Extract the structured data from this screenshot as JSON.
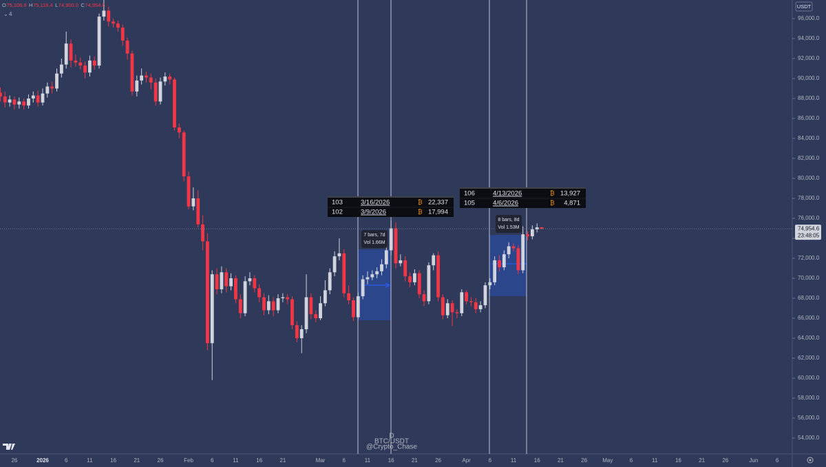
{
  "chart_data": {
    "type": "candlestick",
    "categories": [
      null,
      null,
      null,
      "26",
      null,
      null,
      null,
      null,
      null,
      "2026",
      null,
      null,
      null,
      null,
      "6",
      null,
      null,
      null,
      null,
      "11",
      null,
      null,
      null,
      null,
      "16",
      null,
      null,
      null,
      null,
      "21",
      null,
      null,
      null,
      null,
      "26",
      null,
      null,
      null,
      null,
      null,
      "Feb",
      null,
      null,
      null,
      null,
      "6",
      null,
      null,
      null,
      null,
      "11",
      null,
      null,
      null,
      null,
      "16",
      null,
      null,
      null,
      null,
      "21",
      null,
      null,
      null,
      null,
      null,
      null,
      null,
      "Mar",
      null,
      null,
      null,
      null,
      "6",
      null,
      null,
      null,
      null,
      "11",
      null,
      null,
      null,
      null,
      "16",
      null,
      null,
      null,
      null,
      "21",
      null,
      null,
      null,
      null,
      "26",
      null,
      null,
      null,
      null,
      null,
      "Apr",
      null,
      null,
      null,
      null,
      "6",
      null,
      null,
      null,
      null,
      "11",
      null,
      null,
      null,
      null,
      "16",
      null,
      null,
      null,
      null,
      "21",
      null,
      null,
      null,
      null,
      "26",
      null,
      null,
      null,
      null,
      "May",
      null,
      null,
      null,
      null,
      "6",
      null,
      null,
      null,
      null,
      "11",
      null,
      null,
      null,
      null,
      "16",
      null,
      null,
      null,
      null,
      "21",
      null,
      null,
      null,
      null,
      "26",
      null,
      null,
      null,
      null,
      null,
      "Jun",
      null,
      null,
      null,
      null,
      "6",
      null,
      null,
      null
    ],
    "open": [
      88600,
      88200,
      87600,
      87900,
      87400,
      87700,
      87300,
      88000,
      88300,
      87600,
      88500,
      89200,
      89000,
      90500,
      91400,
      93500,
      91800,
      91600,
      91300,
      90600,
      91800,
      91300,
      96200,
      96800,
      95700,
      95500,
      95100,
      93800,
      92500,
      88700,
      89800,
      90300,
      90100,
      89600,
      87700,
      89700,
      90200,
      89900,
      85100,
      84600,
      80200,
      77200,
      78000,
      75400,
      73700,
      63500,
      70400,
      68900,
      70600,
      69200,
      70000,
      67900,
      66500,
      69700,
      70000,
      69000,
      68100,
      66800,
      67700,
      66800,
      68000,
      68100,
      67900,
      65300,
      64000,
      64900,
      68100,
      66400,
      66000,
      67500,
      68800,
      70600,
      72200,
      72500,
      68500,
      67800,
      66100,
      68200,
      69900,
      70100,
      70400,
      70700,
      71400,
      72800,
      75000,
      71500,
      71800,
      70200,
      69600,
      70500,
      68400,
      67700,
      71300,
      72300,
      68100,
      66300,
      67500,
      66600,
      66500,
      68600,
      67700,
      67600,
      66900,
      67300,
      69300,
      69600,
      71800,
      71100,
      72400,
      73200,
      73000,
      70800,
      74400,
      74200,
      74900,
      75106.8,
      null,
      null,
      null,
      null,
      null,
      null,
      null,
      null,
      null,
      null,
      null,
      null,
      null,
      null,
      null,
      null,
      null,
      null,
      null,
      null,
      null,
      null,
      null,
      null,
      null,
      null,
      null,
      null,
      null,
      null,
      null,
      null,
      null,
      null,
      null,
      null,
      null,
      null,
      null,
      null,
      null,
      null,
      null,
      null,
      null,
      null,
      null,
      null,
      null,
      null,
      null,
      null,
      null
    ],
    "high": [
      89100,
      88700,
      88300,
      88200,
      88100,
      88000,
      88400,
      88700,
      88800,
      89000,
      89600,
      89700,
      91000,
      92000,
      94700,
      93900,
      92400,
      92100,
      91700,
      92300,
      92200,
      96500,
      97900,
      97200,
      96000,
      95800,
      95400,
      94100,
      92800,
      90300,
      91000,
      90700,
      90500,
      90000,
      90100,
      90600,
      90500,
      90100,
      85500,
      84800,
      80700,
      79100,
      78800,
      76300,
      74500,
      70800,
      71000,
      71200,
      71000,
      70500,
      70300,
      68400,
      70200,
      70600,
      70300,
      69400,
      68500,
      68300,
      68100,
      68400,
      68500,
      68400,
      68200,
      65700,
      65300,
      70400,
      68500,
      66800,
      68200,
      69800,
      71000,
      72700,
      74000,
      72900,
      69300,
      68100,
      68600,
      70300,
      70700,
      70800,
      71100,
      71900,
      73200,
      75800,
      75600,
      72400,
      72200,
      70600,
      70900,
      70800,
      68800,
      71600,
      72500,
      72700,
      68400,
      67900,
      67800,
      66900,
      68900,
      68800,
      68100,
      68000,
      67700,
      69600,
      70000,
      72200,
      72300,
      72800,
      73600,
      73500,
      73300,
      75200,
      74700,
      75300,
      75500,
      75118.4,
      null,
      null,
      null,
      null,
      null,
      null,
      null,
      null,
      null,
      null,
      null,
      null,
      null,
      null,
      null,
      null,
      null,
      null,
      null,
      null,
      null,
      null,
      null,
      null,
      null,
      null,
      null,
      null,
      null,
      null,
      null,
      null,
      null,
      null,
      null,
      null,
      null,
      null,
      null,
      null,
      null,
      null,
      null,
      null,
      null,
      null,
      null,
      null,
      null,
      null,
      null,
      null,
      null
    ],
    "low": [
      87700,
      87100,
      87200,
      86900,
      87000,
      86900,
      87000,
      87600,
      87200,
      87300,
      88100,
      88500,
      88700,
      90100,
      91000,
      91100,
      91200,
      90900,
      90000,
      90200,
      90900,
      91000,
      95800,
      95200,
      95100,
      94700,
      93300,
      91900,
      88300,
      88200,
      89400,
      89600,
      88900,
      87300,
      87400,
      89300,
      89400,
      84800,
      84000,
      79700,
      76900,
      76800,
      75100,
      72800,
      62800,
      59800,
      68400,
      68500,
      68600,
      68800,
      67500,
      66000,
      66200,
      69300,
      68600,
      67600,
      66300,
      66400,
      66200,
      66500,
      67600,
      67400,
      64900,
      63600,
      62500,
      64500,
      65900,
      65600,
      65800,
      67200,
      68400,
      70200,
      71800,
      68100,
      67400,
      65700,
      65900,
      67900,
      69400,
      69800,
      70000,
      70300,
      71000,
      72300,
      71000,
      71200,
      69700,
      69100,
      69300,
      68000,
      67200,
      67400,
      70800,
      67700,
      65900,
      66000,
      65200,
      66000,
      66200,
      67400,
      67200,
      66500,
      66600,
      67000,
      68900,
      69300,
      70700,
      70800,
      72000,
      72700,
      70400,
      70500,
      73800,
      73900,
      74600,
      74900,
      null,
      null,
      null,
      null,
      null,
      null,
      null,
      null,
      null,
      null,
      null,
      null,
      null,
      null,
      null,
      null,
      null,
      null,
      null,
      null,
      null,
      null,
      null,
      null,
      null,
      null,
      null,
      null,
      null,
      null,
      null,
      null,
      null,
      null,
      null,
      null,
      null,
      null,
      null,
      null,
      null,
      null,
      null,
      null,
      null,
      null,
      null,
      null,
      null,
      null,
      null,
      null,
      null
    ],
    "close": [
      88200,
      87600,
      87900,
      87400,
      87700,
      87300,
      88000,
      88300,
      87600,
      88500,
      89200,
      89000,
      90500,
      91400,
      93500,
      91800,
      91600,
      91300,
      90600,
      91800,
      91300,
      96200,
      96800,
      95700,
      95500,
      95100,
      93800,
      92500,
      88700,
      89800,
      90300,
      90100,
      89600,
      87700,
      89700,
      90200,
      89900,
      85100,
      84600,
      80200,
      77200,
      78000,
      75400,
      73700,
      63500,
      70400,
      68900,
      70600,
      69200,
      70000,
      67900,
      66500,
      69700,
      70000,
      69000,
      68100,
      66800,
      67700,
      66800,
      68000,
      68100,
      67900,
      65300,
      64000,
      64900,
      68100,
      66400,
      66000,
      67500,
      68800,
      70600,
      72200,
      72500,
      68500,
      67800,
      66100,
      68200,
      69900,
      70100,
      70400,
      70700,
      71400,
      72800,
      75000,
      71500,
      71800,
      70200,
      69600,
      70500,
      68400,
      67700,
      71300,
      72300,
      68100,
      66300,
      67500,
      66600,
      66500,
      68600,
      67700,
      67600,
      66900,
      67300,
      69300,
      69600,
      71800,
      71100,
      72400,
      73200,
      73000,
      70800,
      74400,
      74200,
      74900,
      75100,
      74954.6,
      null,
      null,
      null,
      null,
      null,
      null,
      null,
      null,
      null,
      null,
      null,
      null,
      null,
      null,
      null,
      null,
      null,
      null,
      null,
      null,
      null,
      null,
      null,
      null,
      null,
      null,
      null,
      null,
      null,
      null,
      null,
      null,
      null,
      null,
      null,
      null,
      null,
      null,
      null,
      null,
      null,
      null,
      null,
      null,
      null,
      null,
      null,
      null,
      null,
      null,
      null,
      null,
      null
    ],
    "colors": {
      "up": "#d1d4dc",
      "down": "#f23645"
    },
    "ylim": [
      52483,
      97862
    ],
    "yticks": [
      {
        "value": 54000,
        "label": "54,000.0"
      },
      {
        "value": 56000,
        "label": "56,000.0"
      },
      {
        "value": 58000,
        "label": "58,000.0"
      },
      {
        "value": 60000,
        "label": "60,000.0"
      },
      {
        "value": 62000,
        "label": "62,000.0"
      },
      {
        "value": 64000,
        "label": "64,000.0"
      },
      {
        "value": 66000,
        "label": "66,000.0"
      },
      {
        "value": 68000,
        "label": "68,000.0"
      },
      {
        "value": 70000,
        "label": "70,000.0"
      },
      {
        "value": 72000,
        "label": "72,000.0"
      },
      {
        "value": 74000,
        "label": "74,000.0"
      },
      {
        "value": 76000,
        "label": "76,000.0"
      },
      {
        "value": 78000,
        "label": "78,000.0"
      },
      {
        "value": 80000,
        "label": "80,000.0"
      },
      {
        "value": 82000,
        "label": "82,000.0"
      },
      {
        "value": 84000,
        "label": "84,000.0"
      },
      {
        "value": 86000,
        "label": "86,000.0"
      },
      {
        "value": 88000,
        "label": "88,000.0"
      },
      {
        "value": 90000,
        "label": "90,000.0"
      },
      {
        "value": 92000,
        "label": "92,000.0"
      },
      {
        "value": 94000,
        "label": "94,000.0"
      },
      {
        "value": 96000,
        "label": "96,000.0"
      }
    ],
    "grid": false,
    "last_price": {
      "value": 74954.6,
      "label": "74,954.6"
    },
    "countdown": "23:48:05"
  },
  "header": {
    "ohlc": [
      {
        "key": "O",
        "value": "75,106.8"
      },
      {
        "key": "H",
        "value": "75,118.4"
      },
      {
        "key": "L",
        "value": "74,900.0"
      },
      {
        "key": "C",
        "value": "74,954.6"
      }
    ],
    "indicators": "4",
    "currency": "USDT"
  },
  "watermark": {
    "interval": "D",
    "symbol": "BTC/USDT",
    "author": "@Crypto_Chase"
  },
  "range_labels": [
    {
      "bars": "7 bars, 7d",
      "volume": "Vol 1.66M"
    },
    {
      "bars": "8 bars, 8d",
      "volume": "Vol 1.53M"
    }
  ],
  "tables": [
    {
      "rows": [
        [
          "103",
          "3/16/2026",
          "₿",
          "22,337"
        ],
        [
          "102",
          "3/9/2026",
          "₿",
          "17,994"
        ]
      ]
    },
    {
      "rows": [
        [
          "106",
          "4/13/2026",
          "₿",
          "13,927"
        ],
        [
          "105",
          "4/6/2026",
          "₿",
          "4,871"
        ]
      ]
    }
  ]
}
